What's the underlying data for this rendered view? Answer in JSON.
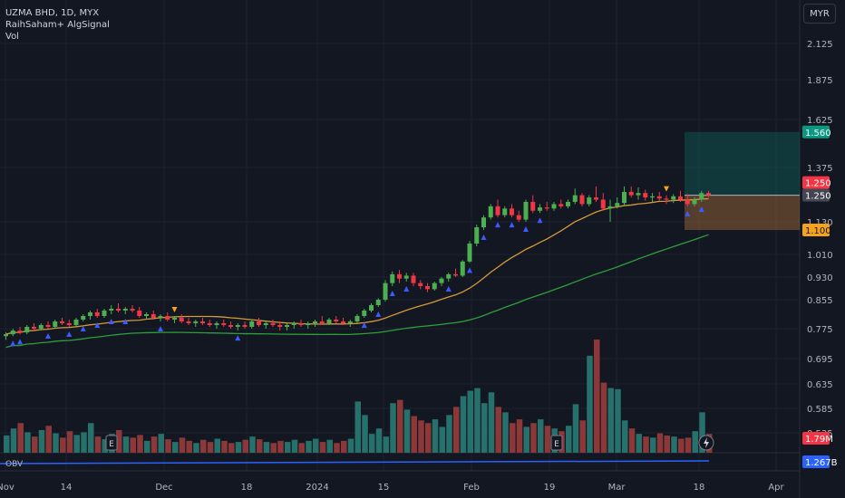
{
  "header": {
    "symbol_line": "UZMA BHD, 1D, MYX",
    "indicator_name": "RaihSaham+ AlgSignal",
    "volume_label": "Vol",
    "currency": "MYR"
  },
  "obv_label": "OBV",
  "colors": {
    "background": "#131722",
    "up": "#4caf50",
    "down": "#f23645",
    "vol_up": "#26716b",
    "vol_down": "#8d3838",
    "ma_fast": "#d49a39",
    "ma_slow": "#2e9e3a",
    "obv_line": "#2962ff",
    "signal_up": "#3d5afe",
    "signal_down": "#f7a21b"
  },
  "chart_data": {
    "type": "candlestick",
    "price_axis_ticks": [
      "2.125",
      "1.875",
      "1.625",
      "1.375",
      "1.130",
      "1.010",
      "0.930",
      "0.855",
      "0.775",
      "0.695",
      "0.635",
      "0.585",
      "0.535"
    ],
    "time_axis_ticks": [
      "Nov",
      "14",
      "Dec",
      "18",
      "2024",
      "15",
      "Feb",
      "19",
      "Mar",
      "18",
      "Apr"
    ],
    "price_labels": {
      "target": "1.560",
      "last": "1.250",
      "entry": "1.250",
      "stop": "1.100",
      "volume": "1.79M",
      "obv": "1.267B"
    },
    "position": {
      "target": 1.56,
      "entry": 1.25,
      "stop": 1.1
    },
    "candles": [
      [
        0.755,
        0.765,
        0.745,
        0.76
      ],
      [
        0.76,
        0.775,
        0.755,
        0.77
      ],
      [
        0.77,
        0.78,
        0.76,
        0.765
      ],
      [
        0.765,
        0.785,
        0.76,
        0.78
      ],
      [
        0.78,
        0.79,
        0.77,
        0.775
      ],
      [
        0.775,
        0.79,
        0.77,
        0.785
      ],
      [
        0.785,
        0.795,
        0.775,
        0.78
      ],
      [
        0.78,
        0.8,
        0.775,
        0.795
      ],
      [
        0.795,
        0.805,
        0.785,
        0.79
      ],
      [
        0.79,
        0.8,
        0.78,
        0.785
      ],
      [
        0.785,
        0.805,
        0.78,
        0.8
      ],
      [
        0.8,
        0.815,
        0.795,
        0.81
      ],
      [
        0.81,
        0.825,
        0.8,
        0.82
      ],
      [
        0.82,
        0.83,
        0.805,
        0.81
      ],
      [
        0.81,
        0.83,
        0.805,
        0.825
      ],
      [
        0.825,
        0.84,
        0.815,
        0.83
      ],
      [
        0.83,
        0.845,
        0.82,
        0.825
      ],
      [
        0.825,
        0.835,
        0.815,
        0.83
      ],
      [
        0.83,
        0.84,
        0.82,
        0.825
      ],
      [
        0.825,
        0.835,
        0.805,
        0.81
      ],
      [
        0.81,
        0.82,
        0.8,
        0.815
      ],
      [
        0.815,
        0.825,
        0.8,
        0.805
      ],
      [
        0.805,
        0.815,
        0.795,
        0.81
      ],
      [
        0.81,
        0.82,
        0.795,
        0.8
      ],
      [
        0.8,
        0.81,
        0.79,
        0.805
      ],
      [
        0.805,
        0.815,
        0.79,
        0.795
      ],
      [
        0.795,
        0.805,
        0.785,
        0.79
      ],
      [
        0.79,
        0.8,
        0.78,
        0.795
      ],
      [
        0.795,
        0.805,
        0.785,
        0.79
      ],
      [
        0.79,
        0.8,
        0.78,
        0.785
      ],
      [
        0.785,
        0.795,
        0.775,
        0.79
      ],
      [
        0.79,
        0.8,
        0.78,
        0.785
      ],
      [
        0.785,
        0.795,
        0.775,
        0.78
      ],
      [
        0.78,
        0.79,
        0.77,
        0.785
      ],
      [
        0.785,
        0.795,
        0.775,
        0.78
      ],
      [
        0.78,
        0.8,
        0.775,
        0.795
      ],
      [
        0.795,
        0.805,
        0.78,
        0.785
      ],
      [
        0.785,
        0.795,
        0.775,
        0.79
      ],
      [
        0.79,
        0.8,
        0.78,
        0.785
      ],
      [
        0.785,
        0.795,
        0.77,
        0.78
      ],
      [
        0.78,
        0.79,
        0.77,
        0.785
      ],
      [
        0.785,
        0.795,
        0.775,
        0.79
      ],
      [
        0.79,
        0.8,
        0.78,
        0.785
      ],
      [
        0.785,
        0.795,
        0.775,
        0.79
      ],
      [
        0.79,
        0.8,
        0.78,
        0.795
      ],
      [
        0.795,
        0.81,
        0.785,
        0.79
      ],
      [
        0.79,
        0.805,
        0.785,
        0.8
      ],
      [
        0.8,
        0.81,
        0.79,
        0.795
      ],
      [
        0.795,
        0.805,
        0.785,
        0.79
      ],
      [
        0.79,
        0.8,
        0.78,
        0.795
      ],
      [
        0.795,
        0.815,
        0.79,
        0.81
      ],
      [
        0.81,
        0.83,
        0.805,
        0.825
      ],
      [
        0.825,
        0.845,
        0.82,
        0.84
      ],
      [
        0.84,
        0.86,
        0.835,
        0.855
      ],
      [
        0.855,
        0.92,
        0.85,
        0.91
      ],
      [
        0.91,
        0.95,
        0.9,
        0.94
      ],
      [
        0.94,
        0.955,
        0.91,
        0.925
      ],
      [
        0.925,
        0.945,
        0.915,
        0.935
      ],
      [
        0.935,
        0.945,
        0.9,
        0.91
      ],
      [
        0.91,
        0.92,
        0.89,
        0.9
      ],
      [
        0.9,
        0.91,
        0.88,
        0.89
      ],
      [
        0.89,
        0.915,
        0.885,
        0.91
      ],
      [
        0.91,
        0.93,
        0.9,
        0.925
      ],
      [
        0.925,
        0.945,
        0.915,
        0.94
      ],
      [
        0.94,
        0.96,
        0.93,
        0.935
      ],
      [
        0.935,
        0.99,
        0.93,
        0.985
      ],
      [
        0.985,
        1.06,
        0.98,
        1.05
      ],
      [
        1.05,
        1.12,
        1.04,
        1.11
      ],
      [
        1.11,
        1.16,
        1.1,
        1.15
      ],
      [
        1.15,
        1.21,
        1.14,
        1.2
      ],
      [
        1.2,
        1.23,
        1.15,
        1.16
      ],
      [
        1.16,
        1.2,
        1.15,
        1.19
      ],
      [
        1.19,
        1.21,
        1.15,
        1.16
      ],
      [
        1.16,
        1.18,
        1.13,
        1.14
      ],
      [
        1.14,
        1.23,
        1.13,
        1.22
      ],
      [
        1.22,
        1.25,
        1.17,
        1.18
      ],
      [
        1.18,
        1.21,
        1.17,
        1.195
      ],
      [
        1.195,
        1.22,
        1.18,
        1.19
      ],
      [
        1.19,
        1.22,
        1.18,
        1.21
      ],
      [
        1.21,
        1.23,
        1.19,
        1.2
      ],
      [
        1.2,
        1.23,
        1.19,
        1.22
      ],
      [
        1.22,
        1.28,
        1.21,
        1.25
      ],
      [
        1.25,
        1.26,
        1.2,
        1.21
      ],
      [
        1.21,
        1.25,
        1.2,
        1.24
      ],
      [
        1.24,
        1.29,
        1.22,
        1.23
      ],
      [
        1.23,
        1.26,
        1.18,
        1.19
      ],
      [
        1.19,
        1.23,
        1.13,
        1.2
      ],
      [
        1.2,
        1.24,
        1.19,
        1.215
      ],
      [
        1.215,
        1.29,
        1.2,
        1.265
      ],
      [
        1.265,
        1.29,
        1.24,
        1.25
      ],
      [
        1.25,
        1.285,
        1.23,
        1.26
      ],
      [
        1.26,
        1.275,
        1.225,
        1.24
      ],
      [
        1.24,
        1.26,
        1.22,
        1.245
      ],
      [
        1.245,
        1.265,
        1.225,
        1.235
      ],
      [
        1.235,
        1.25,
        1.21,
        1.23
      ],
      [
        1.23,
        1.255,
        1.215,
        1.245
      ],
      [
        1.245,
        1.27,
        1.22,
        1.23
      ],
      [
        1.23,
        1.255,
        1.2,
        1.21
      ],
      [
        1.21,
        1.24,
        1.2,
        1.23
      ],
      [
        1.23,
        1.27,
        1.22,
        1.26
      ],
      [
        1.26,
        1.27,
        1.24,
        1.25
      ]
    ],
    "volume": [
      0.32,
      0.45,
      0.55,
      0.38,
      0.3,
      0.42,
      0.5,
      0.36,
      0.28,
      0.4,
      0.33,
      0.38,
      0.55,
      0.3,
      0.25,
      0.35,
      0.42,
      0.3,
      0.28,
      0.33,
      0.22,
      0.3,
      0.35,
      0.25,
      0.2,
      0.28,
      0.22,
      0.18,
      0.24,
      0.2,
      0.26,
      0.22,
      0.18,
      0.2,
      0.24,
      0.3,
      0.25,
      0.2,
      0.18,
      0.22,
      0.2,
      0.24,
      0.18,
      0.22,
      0.26,
      0.2,
      0.24,
      0.18,
      0.22,
      0.26,
      0.95,
      0.7,
      0.35,
      0.45,
      0.3,
      0.92,
      0.98,
      0.8,
      0.68,
      0.6,
      0.55,
      0.62,
      0.48,
      0.7,
      0.85,
      1.05,
      1.15,
      1.2,
      0.92,
      1.12,
      0.85,
      0.75,
      0.55,
      0.62,
      0.48,
      0.55,
      0.62,
      0.5,
      0.45,
      0.4,
      0.5,
      0.9,
      0.6,
      1.8,
      2.1,
      1.3,
      1.2,
      1.18,
      0.6,
      0.45,
      0.35,
      0.3,
      0.28,
      0.36,
      0.32,
      0.3,
      0.26,
      0.28,
      0.4,
      0.75,
      0.35
    ],
    "signals_up": [
      1,
      2,
      6,
      9,
      11,
      13,
      15,
      17,
      22,
      33,
      51,
      53,
      55,
      57,
      63,
      66,
      68,
      70,
      72,
      74,
      76,
      97,
      99
    ],
    "signals_down": [
      24,
      94
    ]
  }
}
